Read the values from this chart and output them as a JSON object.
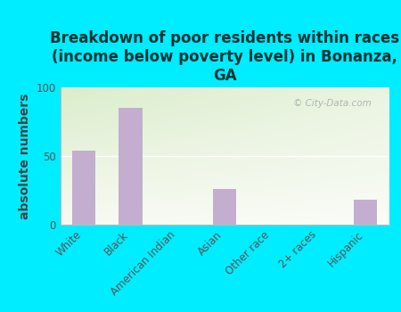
{
  "title": "Breakdown of poor residents within races\n(income below poverty level) in Bonanza,\nGA",
  "categories": [
    "White",
    "Black",
    "American Indian",
    "Asian",
    "Other race",
    "2+ races",
    "Hispanic"
  ],
  "values": [
    54,
    85,
    0,
    26,
    0,
    0,
    18
  ],
  "bar_color": "#c4aed0",
  "ylabel": "absolute numbers",
  "ylim": [
    0,
    100
  ],
  "yticks": [
    0,
    50,
    100
  ],
  "outer_bg": "#00ecff",
  "watermark": "City-Data.com",
  "title_fontsize": 12,
  "title_color": "#003333",
  "ylabel_fontsize": 10,
  "ylabel_color": "#444444",
  "tick_fontsize": 8.5,
  "tick_color": "#555555"
}
